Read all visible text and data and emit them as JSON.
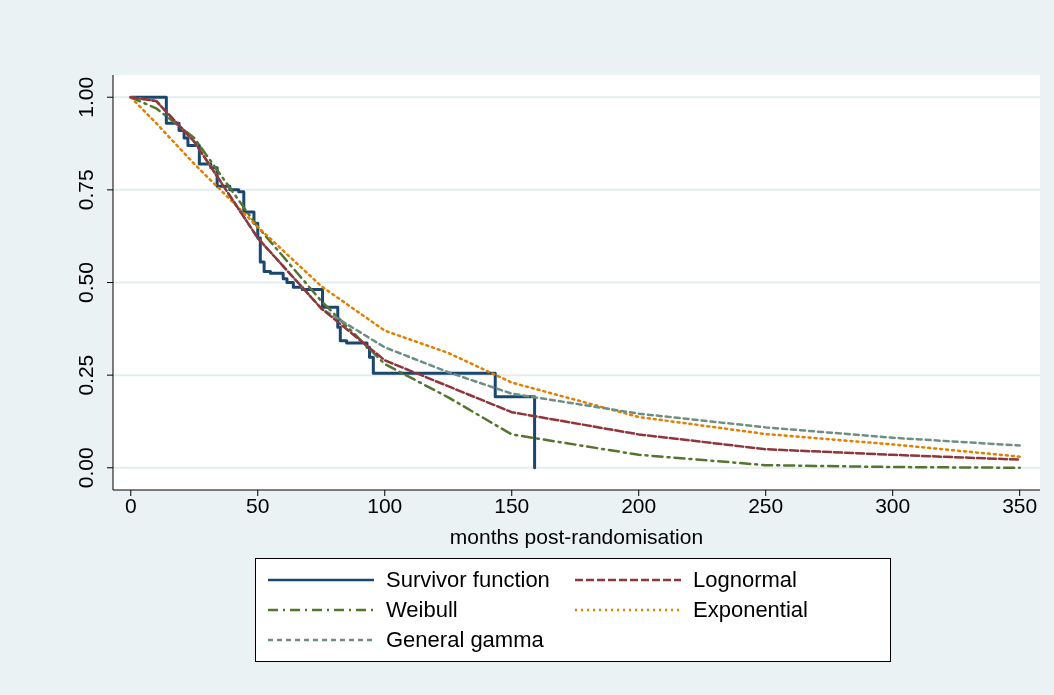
{
  "chart_data": {
    "type": "line",
    "xlabel": "months post-randomisation",
    "xlim": [
      -7,
      358
    ],
    "xticks": [
      0,
      50,
      100,
      150,
      200,
      250,
      300,
      350
    ],
    "ylim": [
      -0.06,
      1.06
    ],
    "yticks": [
      {
        "value": 0,
        "label": "0.00"
      },
      {
        "value": 0.25,
        "label": "0.25"
      },
      {
        "value": 0.5,
        "label": "0.50"
      },
      {
        "value": 0.75,
        "label": "0.75"
      },
      {
        "value": 1,
        "label": "1.00"
      }
    ],
    "grid": "y",
    "legend": "bottom",
    "marker": "none",
    "series": [
      {
        "name": "Survivor function",
        "type": "step",
        "color": "#1a476f",
        "line_style": "solid",
        "x": [
          0,
          14,
          19,
          21,
          22.5,
          27,
          31.5,
          34,
          39,
          42.5,
          44.5,
          48.5,
          50,
          51,
          52.5,
          55,
          60,
          61.5,
          64,
          67.5,
          75.5,
          81.5,
          82.5,
          85,
          93,
          94,
          95.5,
          143.5,
          159
        ],
        "values": [
          1.0,
          0.93,
          0.91,
          0.89,
          0.87,
          0.82,
          0.81,
          0.76,
          0.75,
          0.745,
          0.69,
          0.66,
          0.62,
          0.555,
          0.53,
          0.525,
          0.51,
          0.5,
          0.487,
          0.481,
          0.433,
          0.379,
          0.343,
          0.337,
          0.325,
          0.298,
          0.255,
          0.192,
          0
        ]
      },
      {
        "name": "Lognormal",
        "color": "#90353b",
        "line_style": "dashed",
        "x": [
          0,
          10,
          25,
          50,
          75,
          100,
          150,
          200,
          250,
          300,
          350
        ],
        "values": [
          1.0,
          0.99,
          0.88,
          0.62,
          0.43,
          0.29,
          0.15,
          0.09,
          0.05,
          0.035,
          0.022
        ]
      },
      {
        "name": "Weibull",
        "color": "#55752f",
        "line_style": "dashdot",
        "x": [
          0,
          10,
          25,
          50,
          75,
          100,
          125,
          150,
          200,
          250,
          300,
          350
        ],
        "values": [
          1.0,
          0.97,
          0.89,
          0.65,
          0.45,
          0.28,
          0.19,
          0.09,
          0.035,
          0.007,
          0.002,
          0
        ]
      },
      {
        "name": "Exponential",
        "color": "#e37e00",
        "line_style": "dotted",
        "x": [
          0,
          10,
          25,
          50,
          75,
          100,
          125,
          150,
          200,
          250,
          300,
          350
        ],
        "values": [
          1.0,
          0.93,
          0.82,
          0.65,
          0.49,
          0.37,
          0.31,
          0.23,
          0.137,
          0.091,
          0.063,
          0.03
        ]
      },
      {
        "name": "General gamma",
        "color": "#6e8e84",
        "line_style": "dashed",
        "x": [
          0,
          10,
          25,
          50,
          75,
          100,
          125,
          150,
          200,
          250,
          300,
          350
        ],
        "values": [
          1.0,
          0.99,
          0.88,
          0.62,
          0.43,
          0.325,
          0.258,
          0.2,
          0.146,
          0.109,
          0.081,
          0.06
        ]
      }
    ]
  }
}
